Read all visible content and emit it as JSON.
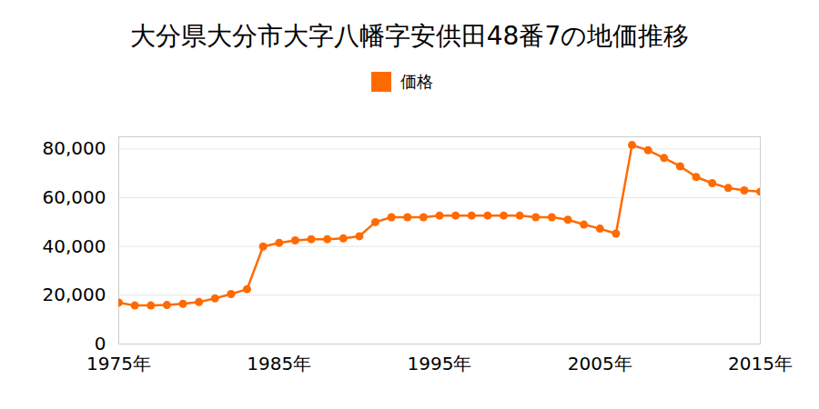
{
  "chart_data": {
    "type": "line",
    "title": "大分県大分市大字八幡字安供田48番7の地価推移",
    "x": [
      1975,
      1976,
      1977,
      1978,
      1979,
      1980,
      1981,
      1982,
      1983,
      1984,
      1985,
      1986,
      1987,
      1988,
      1989,
      1990,
      1991,
      1992,
      1993,
      1994,
      1995,
      1996,
      1997,
      1998,
      1999,
      2000,
      2001,
      2002,
      2003,
      2004,
      2005,
      2006,
      2007,
      2008,
      2009,
      2010,
      2011,
      2012,
      2013,
      2014,
      2015
    ],
    "series": [
      {
        "name": "価格",
        "color": "#ff6a00",
        "marker": "circle",
        "values": [
          17000,
          15800,
          15800,
          16000,
          16500,
          17200,
          18700,
          20500,
          22500,
          40000,
          41500,
          42500,
          43000,
          43000,
          43300,
          44200,
          50000,
          52000,
          52000,
          52000,
          52700,
          52700,
          52700,
          52700,
          52700,
          52700,
          52000,
          52000,
          51000,
          49000,
          47300,
          45300,
          81600,
          79500,
          76300,
          72900,
          68500,
          66000,
          64000,
          63000,
          62500
        ]
      }
    ],
    "xlim": [
      1975,
      2015
    ],
    "xticks": [
      {
        "value": 1975,
        "label": "1975年"
      },
      {
        "value": 1985,
        "label": "1985年"
      },
      {
        "value": 1995,
        "label": "1995年"
      },
      {
        "value": 2005,
        "label": "2005年"
      },
      {
        "value": 2015,
        "label": "2015年"
      }
    ],
    "ylim": [
      0,
      85000
    ],
    "yticks": [
      0,
      {
        "value": 20000,
        "label": "20,000"
      },
      {
        "value": 40000,
        "label": "40,000"
      },
      {
        "value": 60000,
        "label": "60,000"
      },
      {
        "value": 80000,
        "label": "80,000"
      }
    ],
    "grid": true,
    "legend": "top"
  }
}
